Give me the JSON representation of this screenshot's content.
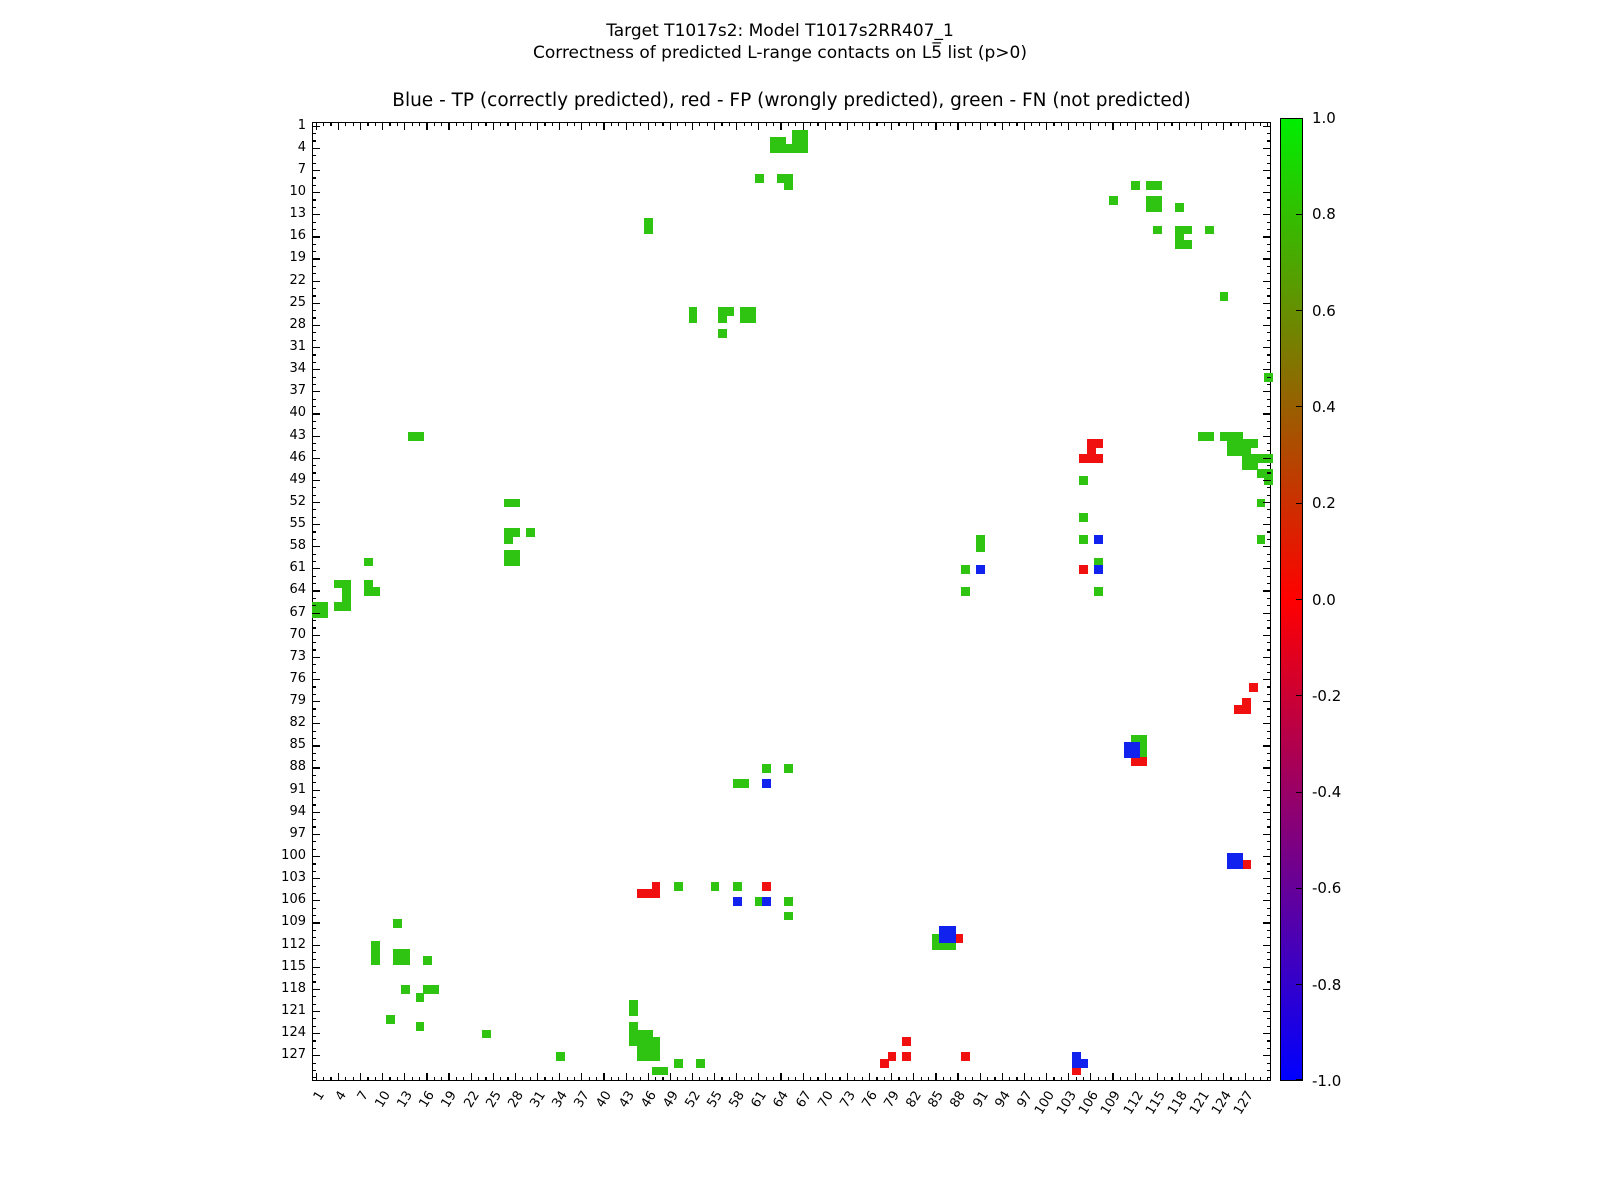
{
  "title": {
    "line1": "Target T1017s2: Model T1017s2RR407_1",
    "line2": "Correctness of predicted L-range contacts on L5̅ list (p>0)"
  },
  "axes_title": "Blue - TP (correctly predicted), red - FP (wrongly predicted), green - FN (not predicted)",
  "chart_data": {
    "type": "heatmap",
    "description": "Residue-residue contact map, matrix indices 1-130 on both axes",
    "axis_range": [
      1,
      130
    ],
    "tick_labels": [
      1,
      4,
      7,
      10,
      13,
      16,
      19,
      22,
      25,
      28,
      31,
      34,
      37,
      40,
      43,
      46,
      49,
      52,
      55,
      58,
      61,
      64,
      67,
      70,
      73,
      76,
      79,
      82,
      85,
      88,
      91,
      94,
      97,
      100,
      103,
      106,
      109,
      112,
      115,
      118,
      121,
      124,
      127
    ],
    "grid": false,
    "legend": {
      "TP": {
        "label": "TP (correctly predicted)",
        "color": "#1122ee"
      },
      "FP": {
        "label": "FP (wrongly predicted)",
        "color": "#f01010"
      },
      "FN": {
        "label": "FN (not predicted)",
        "color": "#2fc411"
      }
    },
    "colorbar": {
      "tick_labels": [
        "1.0",
        "0.8",
        "0.6",
        "0.4",
        "0.2",
        "0.0",
        "-0.2",
        "-0.4",
        "-0.6",
        "-0.8",
        "-1.0"
      ],
      "top_color": "#00ee00",
      "mid_color": "#ff0000",
      "bottom_color": "#0000ff"
    },
    "cells": {
      "green": [
        [
          66,
          2
        ],
        [
          67,
          2
        ],
        [
          63,
          3
        ],
        [
          64,
          3
        ],
        [
          66,
          3
        ],
        [
          67,
          3
        ],
        [
          63,
          4
        ],
        [
          64,
          4
        ],
        [
          65,
          4
        ],
        [
          66,
          4
        ],
        [
          67,
          4
        ],
        [
          61,
          8
        ],
        [
          64,
          8
        ],
        [
          65,
          8
        ],
        [
          65,
          9
        ],
        [
          112,
          9
        ],
        [
          114,
          9
        ],
        [
          115,
          9
        ],
        [
          109,
          11
        ],
        [
          114,
          11
        ],
        [
          115,
          11
        ],
        [
          114,
          12
        ],
        [
          115,
          12
        ],
        [
          118,
          12
        ],
        [
          46,
          14
        ],
        [
          46,
          15
        ],
        [
          115,
          15
        ],
        [
          118,
          15
        ],
        [
          119,
          15
        ],
        [
          122,
          15
        ],
        [
          118,
          16
        ],
        [
          118,
          17
        ],
        [
          119,
          17
        ],
        [
          124,
          24
        ],
        [
          52,
          26
        ],
        [
          52,
          27
        ],
        [
          56,
          26
        ],
        [
          57,
          26
        ],
        [
          56,
          27
        ],
        [
          59,
          26
        ],
        [
          60,
          26
        ],
        [
          59,
          27
        ],
        [
          60,
          27
        ],
        [
          56,
          29
        ],
        [
          130,
          35
        ],
        [
          14,
          43
        ],
        [
          15,
          43
        ],
        [
          121,
          43
        ],
        [
          122,
          43
        ],
        [
          124,
          43
        ],
        [
          125,
          43
        ],
        [
          126,
          43
        ],
        [
          125,
          44
        ],
        [
          126,
          44
        ],
        [
          127,
          44
        ],
        [
          128,
          44
        ],
        [
          125,
          45
        ],
        [
          126,
          45
        ],
        [
          127,
          45
        ],
        [
          127,
          46
        ],
        [
          128,
          46
        ],
        [
          129,
          46
        ],
        [
          130,
          46
        ],
        [
          127,
          47
        ],
        [
          128,
          47
        ],
        [
          129,
          48
        ],
        [
          130,
          48
        ],
        [
          130,
          49
        ],
        [
          105,
          49
        ],
        [
          27,
          52
        ],
        [
          28,
          52
        ],
        [
          129,
          52
        ],
        [
          105,
          54
        ],
        [
          27,
          56
        ],
        [
          28,
          56
        ],
        [
          30,
          56
        ],
        [
          27,
          57
        ],
        [
          91,
          57
        ],
        [
          91,
          58
        ],
        [
          105,
          57
        ],
        [
          129,
          57
        ],
        [
          27,
          59
        ],
        [
          28,
          59
        ],
        [
          27,
          60
        ],
        [
          28,
          60
        ],
        [
          107,
          60
        ],
        [
          89,
          61
        ],
        [
          8,
          60
        ],
        [
          4,
          63
        ],
        [
          5,
          63
        ],
        [
          8,
          63
        ],
        [
          5,
          64
        ],
        [
          8,
          64
        ],
        [
          9,
          64
        ],
        [
          5,
          65
        ],
        [
          1,
          66
        ],
        [
          2,
          66
        ],
        [
          4,
          66
        ],
        [
          5,
          66
        ],
        [
          1,
          67
        ],
        [
          2,
          67
        ],
        [
          89,
          64
        ],
        [
          107,
          64
        ],
        [
          112,
          84
        ],
        [
          113,
          84
        ],
        [
          113,
          85
        ],
        [
          113,
          86
        ],
        [
          62,
          88
        ],
        [
          65,
          88
        ],
        [
          58,
          90
        ],
        [
          59,
          90
        ],
        [
          85,
          111
        ],
        [
          85,
          112
        ],
        [
          86,
          112
        ],
        [
          87,
          112
        ],
        [
          50,
          104
        ],
        [
          55,
          104
        ],
        [
          58,
          104
        ],
        [
          61,
          106
        ],
        [
          65,
          106
        ],
        [
          65,
          108
        ],
        [
          12,
          109
        ],
        [
          9,
          112
        ],
        [
          9,
          113
        ],
        [
          9,
          114
        ],
        [
          12,
          113
        ],
        [
          13,
          113
        ],
        [
          12,
          114
        ],
        [
          13,
          114
        ],
        [
          16,
          114
        ],
        [
          13,
          118
        ],
        [
          16,
          118
        ],
        [
          17,
          118
        ],
        [
          15,
          119
        ],
        [
          11,
          122
        ],
        [
          15,
          123
        ],
        [
          24,
          124
        ],
        [
          44,
          120
        ],
        [
          44,
          121
        ],
        [
          44,
          123
        ],
        [
          44,
          124
        ],
        [
          44,
          125
        ],
        [
          45,
          124
        ],
        [
          45,
          125
        ],
        [
          45,
          126
        ],
        [
          45,
          127
        ],
        [
          46,
          124
        ],
        [
          46,
          125
        ],
        [
          46,
          126
        ],
        [
          46,
          127
        ],
        [
          47,
          125
        ],
        [
          47,
          126
        ],
        [
          47,
          127
        ],
        [
          47,
          129
        ],
        [
          48,
          129
        ],
        [
          50,
          128
        ],
        [
          53,
          128
        ],
        [
          34,
          127
        ]
      ],
      "red": [
        [
          106,
          44
        ],
        [
          107,
          44
        ],
        [
          106,
          45
        ],
        [
          105,
          46
        ],
        [
          106,
          46
        ],
        [
          107,
          46
        ],
        [
          105,
          61
        ],
        [
          128,
          77
        ],
        [
          127,
          79
        ],
        [
          126,
          80
        ],
        [
          127,
          80
        ],
        [
          112,
          87
        ],
        [
          113,
          87
        ],
        [
          88,
          111
        ],
        [
          127,
          101
        ],
        [
          47,
          104
        ],
        [
          62,
          104
        ],
        [
          45,
          105
        ],
        [
          46,
          105
        ],
        [
          47,
          105
        ],
        [
          81,
          125
        ],
        [
          79,
          127
        ],
        [
          81,
          127
        ],
        [
          78,
          128
        ],
        [
          89,
          127
        ],
        [
          104,
          129
        ]
      ],
      "blue": [
        [
          107,
          57
        ],
        [
          91,
          61
        ],
        [
          107,
          61
        ],
        [
          111,
          85
        ],
        [
          112,
          85
        ],
        [
          111,
          86
        ],
        [
          112,
          86
        ],
        [
          62,
          90
        ],
        [
          86,
          110
        ],
        [
          87,
          110
        ],
        [
          86,
          111
        ],
        [
          87,
          111
        ],
        [
          125,
          100
        ],
        [
          126,
          100
        ],
        [
          125,
          101
        ],
        [
          126,
          101
        ],
        [
          58,
          106
        ],
        [
          62,
          106
        ],
        [
          104,
          127
        ],
        [
          104,
          128
        ],
        [
          105,
          128
        ]
      ]
    }
  }
}
